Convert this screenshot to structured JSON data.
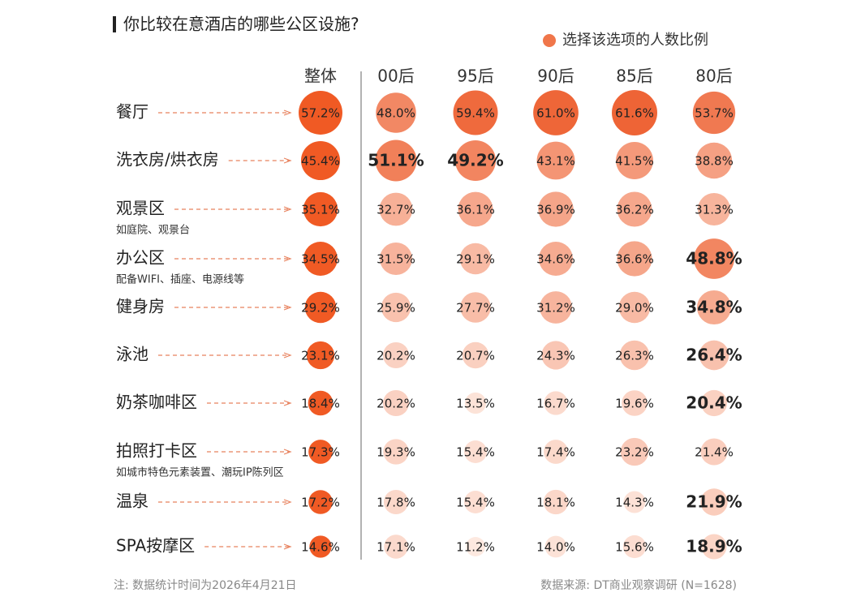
{
  "chart_data": {
    "type": "bubble-matrix",
    "title": "你比较在意酒店的哪些公区设施?",
    "legend": "选择该选项的人数比例",
    "legend_color": "#f0764a",
    "note": "注: 数据统计时间为2026年4月21日",
    "source": "数据来源: DT商业观察调研 (N=1628)",
    "categories": [
      "餐厅",
      "洗衣房/烘衣房",
      "观景区",
      "办公区",
      "健身房",
      "泳池",
      "奶茶咖啡区",
      "拍照打卡区",
      "温泉",
      "SPA按摩区"
    ],
    "category_notes": [
      null,
      null,
      "如庭院、观景台",
      "配备WIFI、插座、电源线等",
      null,
      null,
      null,
      "如城市特色元素装置、潮玩IP陈列区",
      null,
      null
    ],
    "color_range": [
      "#fde9e0",
      "#ee6436"
    ],
    "series": [
      {
        "name": "整体",
        "color": "#f05a24",
        "values": [
          57.2,
          45.4,
          35.1,
          34.5,
          29.2,
          23.1,
          18.4,
          17.3,
          17.2,
          14.6
        ],
        "value_labels": [
          "57.2%",
          "45.4%",
          "35.1%",
          "34.5%",
          "29.2%",
          "23.1%",
          "18.4%",
          "17.3%",
          "17.2%",
          "14.6%"
        ],
        "bold": [
          false,
          false,
          false,
          false,
          false,
          false,
          false,
          false,
          false,
          false
        ]
      },
      {
        "name": "00后",
        "values": [
          48.0,
          51.1,
          32.7,
          31.5,
          25.9,
          20.2,
          20.2,
          19.3,
          17.8,
          17.1
        ],
        "value_labels": [
          "48.0%",
          "51.1%",
          "32.7%",
          "31.5%",
          "25.9%",
          "20.2%",
          "20.2%",
          "19.3%",
          "17.8%",
          "17.1%"
        ],
        "bold": [
          false,
          true,
          false,
          false,
          false,
          false,
          false,
          false,
          false,
          false
        ]
      },
      {
        "name": "95后",
        "values": [
          59.4,
          49.2,
          36.1,
          29.1,
          27.7,
          20.7,
          13.5,
          15.4,
          15.4,
          11.2
        ],
        "value_labels": [
          "59.4%",
          "49.2%",
          "36.1%",
          "29.1%",
          "27.7%",
          "20.7%",
          "13.5%",
          "15.4%",
          "15.4%",
          "11.2%"
        ],
        "bold": [
          false,
          true,
          false,
          false,
          false,
          false,
          false,
          false,
          false,
          false
        ]
      },
      {
        "name": "90后",
        "values": [
          61.0,
          43.1,
          36.9,
          34.6,
          31.2,
          24.3,
          16.7,
          17.4,
          18.1,
          14.0
        ],
        "value_labels": [
          "61.0%",
          "43.1%",
          "36.9%",
          "34.6%",
          "31.2%",
          "24.3%",
          "16.7%",
          "17.4%",
          "18.1%",
          "14.0%"
        ],
        "bold": [
          false,
          false,
          false,
          false,
          false,
          false,
          false,
          false,
          false,
          false
        ]
      },
      {
        "name": "85后",
        "values": [
          61.6,
          41.5,
          36.2,
          36.6,
          29.0,
          26.3,
          19.6,
          23.2,
          14.3,
          15.6
        ],
        "value_labels": [
          "61.6%",
          "41.5%",
          "36.2%",
          "36.6%",
          "29.0%",
          "26.3%",
          "19.6%",
          "23.2%",
          "14.3%",
          "15.6%"
        ],
        "bold": [
          false,
          false,
          false,
          false,
          false,
          false,
          false,
          false,
          false,
          false
        ]
      },
      {
        "name": "80后",
        "values": [
          53.7,
          38.8,
          31.3,
          48.8,
          34.8,
          26.4,
          20.4,
          21.4,
          21.9,
          18.9
        ],
        "value_labels": [
          "53.7%",
          "38.8%",
          "31.3%",
          "48.8%",
          "34.8%",
          "26.4%",
          "20.4%",
          "21.4%",
          "21.9%",
          "18.9%"
        ],
        "bold": [
          false,
          false,
          false,
          true,
          true,
          true,
          true,
          false,
          true,
          true
        ]
      }
    ]
  }
}
